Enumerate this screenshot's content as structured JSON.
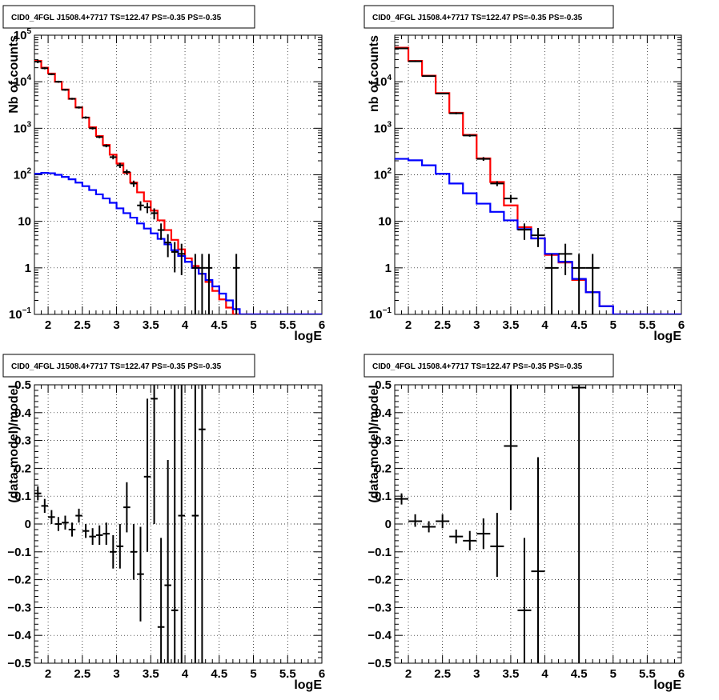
{
  "chart_data": [
    {
      "type": "step",
      "title": "CID0_4FGL J1508.4+7717 TS=122.47 PS=-0.35 PS=-0.35",
      "xlabel": "logE",
      "ylabel": "Nb of counts",
      "yscale": "log",
      "xlim": [
        1.8,
        6.0
      ],
      "ylim": [
        0.1,
        100000
      ],
      "xticks": [
        "2",
        "2.5",
        "3",
        "3.5",
        "4",
        "4.5",
        "5",
        "5.5",
        "6"
      ],
      "yticks": [
        {
          "base": "10",
          "sup": "−1"
        },
        {
          "base": "1",
          "sup": ""
        },
        {
          "base": "10",
          "sup": ""
        },
        {
          "base": "10",
          "sup": "2"
        },
        {
          "base": "10",
          "sup": "3"
        },
        {
          "base": "10",
          "sup": "4"
        },
        {
          "base": "10",
          "sup": "5"
        }
      ],
      "grid": true,
      "series": [
        {
          "color": "#ff0000",
          "bin_edges": [
            1.8,
            1.9,
            2.0,
            2.1,
            2.2,
            2.3,
            2.4,
            2.5,
            2.6,
            2.7,
            2.8,
            2.9,
            3.0,
            3.1,
            3.2,
            3.3,
            3.4,
            3.5,
            3.6,
            3.7,
            3.8,
            3.9,
            4.0,
            4.1,
            4.2,
            4.3,
            4.4,
            4.5,
            4.6,
            4.7,
            4.8,
            4.9,
            5.0,
            5.1,
            5.2,
            5.3,
            5.4,
            5.5,
            5.6,
            5.7,
            5.8,
            5.9,
            6.0
          ],
          "values": [
            28000,
            20000,
            15000,
            10000,
            6800,
            4300,
            2800,
            1700,
            1050,
            680,
            440,
            270,
            175,
            110,
            68,
            42,
            27,
            17,
            10.5,
            6.5,
            4.0,
            2.5,
            1.6,
            1.1,
            0.75,
            0.5,
            0.32,
            0.21,
            0.14,
            0.1,
            0.1,
            0.1,
            0.1,
            0.1,
            0.1,
            0.1,
            0.1,
            0.1,
            0.1,
            0.1,
            0.1,
            0.1
          ]
        },
        {
          "color": "#0000ff",
          "bin_edges": [
            1.8,
            1.9,
            2.0,
            2.1,
            2.2,
            2.3,
            2.4,
            2.5,
            2.6,
            2.7,
            2.8,
            2.9,
            3.0,
            3.1,
            3.2,
            3.3,
            3.4,
            3.5,
            3.6,
            3.7,
            3.8,
            3.9,
            4.0,
            4.1,
            4.2,
            4.3,
            4.4,
            4.5,
            4.6,
            4.7,
            4.8,
            4.9,
            5.0,
            5.1,
            5.2,
            5.3,
            5.4,
            5.5,
            5.6,
            5.7,
            5.8,
            5.9,
            6.0
          ],
          "values": [
            105,
            110,
            108,
            100,
            90,
            80,
            68,
            57,
            47,
            38,
            31,
            25,
            19,
            15,
            12,
            9,
            7,
            5.5,
            4.2,
            3.2,
            2.4,
            1.8,
            1.35,
            1.0,
            0.75,
            0.55,
            0.4,
            0.28,
            0.2,
            0.13,
            0.1,
            0.1,
            0.1,
            0.1,
            0.1,
            0.1,
            0.1,
            0.1,
            0.1,
            0.1,
            0.1,
            0.1
          ]
        }
      ],
      "data_points": [
        {
          "x": 1.85,
          "y": 27000,
          "lo": 25000,
          "hi": 29000
        },
        {
          "x": 1.95,
          "y": 19500,
          "lo": 18500,
          "hi": 20500
        },
        {
          "x": 2.05,
          "y": 14500,
          "lo": 13800,
          "hi": 15200
        },
        {
          "x": 2.15,
          "y": 10000,
          "lo": 9500,
          "hi": 10500
        },
        {
          "x": 2.25,
          "y": 6700,
          "lo": 6400,
          "hi": 7000
        },
        {
          "x": 2.35,
          "y": 4300,
          "lo": 4100,
          "hi": 4500
        },
        {
          "x": 2.45,
          "y": 2800,
          "lo": 2650,
          "hi": 2950
        },
        {
          "x": 2.55,
          "y": 1700,
          "lo": 1600,
          "hi": 1800
        },
        {
          "x": 2.65,
          "y": 1000,
          "lo": 940,
          "hi": 1060
        },
        {
          "x": 2.75,
          "y": 650,
          "lo": 610,
          "hi": 690
        },
        {
          "x": 2.85,
          "y": 420,
          "lo": 390,
          "hi": 450
        },
        {
          "x": 2.95,
          "y": 240,
          "lo": 215,
          "hi": 265
        },
        {
          "x": 3.05,
          "y": 160,
          "lo": 140,
          "hi": 180
        },
        {
          "x": 3.15,
          "y": 115,
          "lo": 100,
          "hi": 130
        },
        {
          "x": 3.25,
          "y": 65,
          "lo": 55,
          "hi": 75
        },
        {
          "x": 3.35,
          "y": 22,
          "lo": 17,
          "hi": 27
        },
        {
          "x": 3.45,
          "y": 20,
          "lo": 15,
          "hi": 25
        },
        {
          "x": 3.55,
          "y": 15,
          "lo": 11,
          "hi": 19
        },
        {
          "x": 3.65,
          "y": 6.5,
          "lo": 4,
          "hi": 9
        },
        {
          "x": 3.75,
          "y": 3.5,
          "lo": 1.7,
          "hi": 5.3
        },
        {
          "x": 3.85,
          "y": 2.2,
          "lo": 0.8,
          "hi": 3.6
        },
        {
          "x": 3.95,
          "y": 2.0,
          "lo": 0.7,
          "hi": 3.3
        },
        {
          "x": 4.15,
          "y": 1.0,
          "lo": 0.1,
          "hi": 2.0
        },
        {
          "x": 4.25,
          "y": 1.0,
          "lo": 0.1,
          "hi": 2.0
        },
        {
          "x": 4.35,
          "y": 1.0,
          "lo": 0.1,
          "hi": 2.0
        },
        {
          "x": 4.75,
          "y": 1.0,
          "lo": 0.1,
          "hi": 2.0
        }
      ]
    },
    {
      "type": "step",
      "title": "CID0_4FGL J1508.4+7717 TS=122.47 PS=-0.35 PS=-0.35",
      "xlabel": "logE",
      "ylabel": "nb of counts",
      "yscale": "log",
      "xlim": [
        1.8,
        6.0
      ],
      "ylim": [
        0.1,
        100000
      ],
      "xticks": [
        "2",
        "2.5",
        "3",
        "3.5",
        "4",
        "4.5",
        "5",
        "5.5",
        "6"
      ],
      "yticks": [
        {
          "base": "10",
          "sup": "−1"
        },
        {
          "base": "1",
          "sup": ""
        },
        {
          "base": "10",
          "sup": ""
        },
        {
          "base": "10",
          "sup": "2"
        },
        {
          "base": "10",
          "sup": "3"
        },
        {
          "base": "10",
          "sup": "4"
        }
      ],
      "grid": true,
      "series": [
        {
          "color": "#ff0000",
          "bin_edges": [
            1.8,
            2.0,
            2.2,
            2.4,
            2.6,
            2.8,
            3.0,
            3.2,
            3.4,
            3.6,
            3.8,
            4.0,
            4.2,
            4.4,
            4.6,
            4.8,
            5.0,
            5.2,
            5.4,
            5.6,
            5.8,
            6.0
          ],
          "values": [
            54000,
            28000,
            13500,
            5700,
            2150,
            720,
            225,
            70,
            22,
            7.5,
            4.3,
            1.9,
            1.3,
            0.55,
            0.3,
            0.15,
            0.1,
            0.1,
            0.1,
            0.1,
            0.1
          ]
        },
        {
          "color": "#0000ff",
          "bin_edges": [
            1.8,
            2.0,
            2.2,
            2.4,
            2.6,
            2.8,
            3.0,
            3.2,
            3.4,
            3.6,
            3.8,
            4.0,
            4.2,
            4.4,
            4.6,
            4.8,
            5.0,
            5.2,
            5.4,
            5.6,
            5.8,
            6.0
          ],
          "values": [
            220,
            205,
            160,
            105,
            65,
            40,
            24,
            16,
            10.5,
            6.8,
            4.3,
            2.0,
            1.35,
            0.58,
            0.3,
            0.15,
            0.1,
            0.1,
            0.1,
            0.1,
            0.1
          ]
        }
      ],
      "data_points": [
        {
          "x": 1.9,
          "y": 52000,
          "lo": 50000,
          "hi": 54000
        },
        {
          "x": 2.1,
          "y": 27500,
          "lo": 26500,
          "hi": 28500
        },
        {
          "x": 2.3,
          "y": 13200,
          "lo": 12800,
          "hi": 13600
        },
        {
          "x": 2.5,
          "y": 5600,
          "lo": 5400,
          "hi": 5800
        },
        {
          "x": 2.7,
          "y": 2100,
          "lo": 2000,
          "hi": 2200
        },
        {
          "x": 2.9,
          "y": 700,
          "lo": 660,
          "hi": 740
        },
        {
          "x": 3.1,
          "y": 220,
          "lo": 200,
          "hi": 240
        },
        {
          "x": 3.3,
          "y": 65,
          "lo": 57,
          "hi": 73
        },
        {
          "x": 3.5,
          "y": 31,
          "lo": 25,
          "hi": 37
        },
        {
          "x": 3.7,
          "y": 6.6,
          "lo": 4,
          "hi": 9
        },
        {
          "x": 3.9,
          "y": 5.0,
          "lo": 2.8,
          "hi": 7.2
        },
        {
          "x": 4.1,
          "y": 1.0,
          "lo": 0.1,
          "hi": 2.0
        },
        {
          "x": 4.3,
          "y": 2.0,
          "lo": 0.7,
          "hi": 3.3
        },
        {
          "x": 4.5,
          "y": 1.0,
          "lo": 0.1,
          "hi": 2.0
        },
        {
          "x": 4.7,
          "y": 1.0,
          "lo": 0.1,
          "hi": 2.0
        }
      ]
    },
    {
      "type": "scatter",
      "title": "CID0_4FGL J1508.4+7717 TS=122.47 PS=-0.35 PS=-0.35",
      "xlabel": "logE",
      "ylabel": "(data-model)/model",
      "yscale": "linear",
      "xlim": [
        1.8,
        6.0
      ],
      "ylim": [
        -0.5,
        0.5
      ],
      "xticks": [
        "2",
        "2.5",
        "3",
        "3.5",
        "4",
        "4.5",
        "5",
        "5.5",
        "6"
      ],
      "yticks": [
        "−0.5",
        "−0.4",
        "−0.3",
        "−0.2",
        "−0.1",
        "0",
        "0.1",
        "0.2",
        "0.3",
        "0.4",
        "0.5"
      ],
      "grid": true,
      "bin_width": 0.1,
      "data_points": [
        {
          "x": 1.85,
          "y": 0.11,
          "lo": 0.085,
          "hi": 0.135
        },
        {
          "x": 1.95,
          "y": 0.065,
          "lo": 0.04,
          "hi": 0.09
        },
        {
          "x": 2.05,
          "y": 0.025,
          "lo": 0.0,
          "hi": 0.05
        },
        {
          "x": 2.15,
          "y": 0.0,
          "lo": -0.025,
          "hi": 0.025
        },
        {
          "x": 2.25,
          "y": 0.005,
          "lo": -0.02,
          "hi": 0.03
        },
        {
          "x": 2.35,
          "y": -0.02,
          "lo": -0.045,
          "hi": 0.005
        },
        {
          "x": 2.45,
          "y": 0.03,
          "lo": 0.005,
          "hi": 0.055
        },
        {
          "x": 2.55,
          "y": -0.025,
          "lo": -0.05,
          "hi": 0.0
        },
        {
          "x": 2.65,
          "y": -0.045,
          "lo": -0.075,
          "hi": -0.015
        },
        {
          "x": 2.75,
          "y": -0.04,
          "lo": -0.075,
          "hi": -0.005
        },
        {
          "x": 2.85,
          "y": -0.035,
          "lo": -0.075,
          "hi": 0.005
        },
        {
          "x": 2.95,
          "y": -0.1,
          "lo": -0.16,
          "hi": -0.04
        },
        {
          "x": 3.05,
          "y": -0.08,
          "lo": -0.16,
          "hi": 0.0
        },
        {
          "x": 3.15,
          "y": 0.06,
          "lo": -0.03,
          "hi": 0.15
        },
        {
          "x": 3.25,
          "y": -0.1,
          "lo": -0.2,
          "hi": 0.0
        },
        {
          "x": 3.35,
          "y": -0.18,
          "lo": -0.35,
          "hi": -0.01
        },
        {
          "x": 3.45,
          "y": 0.17,
          "lo": -0.1,
          "hi": 0.45
        },
        {
          "x": 3.55,
          "y": 0.45,
          "lo": 0.0,
          "hi": 0.5
        },
        {
          "x": 3.65,
          "y": -0.37,
          "lo": -0.5,
          "hi": -0.05
        },
        {
          "x": 3.75,
          "y": -0.22,
          "lo": -0.5,
          "hi": 0.23
        },
        {
          "x": 3.85,
          "y": -0.31,
          "lo": -0.5,
          "hi": 0.5
        },
        {
          "x": 3.95,
          "y": 0.03,
          "lo": -0.5,
          "hi": 0.5
        },
        {
          "x": 4.15,
          "y": 0.03,
          "lo": -0.5,
          "hi": 0.5
        },
        {
          "x": 4.25,
          "y": 0.34,
          "lo": -0.5,
          "hi": 0.5
        }
      ]
    },
    {
      "type": "scatter",
      "title": "CID0_4FGL J1508.4+7717 TS=122.47 PS=-0.35 PS=-0.35",
      "xlabel": "logE",
      "ylabel": "(data-model)/model",
      "yscale": "linear",
      "xlim": [
        1.8,
        6.0
      ],
      "ylim": [
        -0.5,
        0.5
      ],
      "xticks": [
        "2",
        "2.5",
        "3",
        "3.5",
        "4",
        "4.5",
        "5",
        "5.5",
        "6"
      ],
      "yticks": [
        "−0.5",
        "−0.4",
        "−0.3",
        "−0.2",
        "−0.1",
        "0",
        "0.1",
        "0.2",
        "0.3",
        "0.4",
        "0.5"
      ],
      "grid": true,
      "bin_width": 0.2,
      "data_points": [
        {
          "x": 1.9,
          "y": 0.09,
          "lo": 0.07,
          "hi": 0.11
        },
        {
          "x": 2.1,
          "y": 0.01,
          "lo": -0.01,
          "hi": 0.035
        },
        {
          "x": 2.3,
          "y": -0.01,
          "lo": -0.03,
          "hi": 0.01
        },
        {
          "x": 2.5,
          "y": 0.01,
          "lo": -0.015,
          "hi": 0.035
        },
        {
          "x": 2.7,
          "y": -0.045,
          "lo": -0.07,
          "hi": -0.02
        },
        {
          "x": 2.9,
          "y": -0.06,
          "lo": -0.095,
          "hi": -0.025
        },
        {
          "x": 3.1,
          "y": -0.035,
          "lo": -0.09,
          "hi": 0.02
        },
        {
          "x": 3.3,
          "y": -0.08,
          "lo": -0.19,
          "hi": 0.04
        },
        {
          "x": 3.5,
          "y": 0.28,
          "lo": 0.05,
          "hi": 0.5
        },
        {
          "x": 3.7,
          "y": -0.31,
          "lo": -0.5,
          "hi": -0.05
        },
        {
          "x": 3.9,
          "y": -0.17,
          "lo": -0.5,
          "hi": 0.24
        },
        {
          "x": 4.5,
          "y": 0.49,
          "lo": -0.5,
          "hi": 0.5
        }
      ]
    }
  ]
}
